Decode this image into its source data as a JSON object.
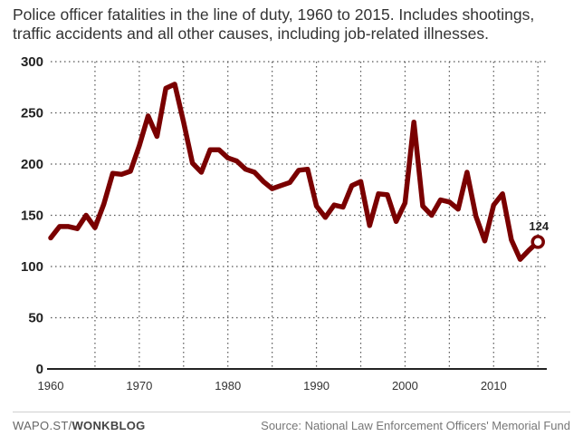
{
  "chart_data": {
    "type": "line",
    "title": "Police officer fatalities in the line of duty, 1960 to 2015. Includes shootings, traffic accidents and all other causes, including job-related illnesses.",
    "xlabel": "",
    "ylabel": "",
    "xlim": [
      1960,
      2016
    ],
    "ylim": [
      0,
      300
    ],
    "yticks": [
      0,
      50,
      100,
      150,
      200,
      250,
      300
    ],
    "xticks": [
      1960,
      1970,
      1980,
      1990,
      2000,
      2010
    ],
    "grid": true,
    "line_color": "#7a0000",
    "series": [
      {
        "name": "Police officer fatalities",
        "x": [
          1960,
          1961,
          1962,
          1963,
          1964,
          1965,
          1966,
          1967,
          1968,
          1969,
          1970,
          1971,
          1972,
          1973,
          1974,
          1975,
          1976,
          1977,
          1978,
          1979,
          1980,
          1981,
          1982,
          1983,
          1984,
          1985,
          1986,
          1987,
          1988,
          1989,
          1990,
          1991,
          1992,
          1993,
          1994,
          1995,
          1996,
          1997,
          1998,
          1999,
          2000,
          2001,
          2002,
          2003,
          2004,
          2005,
          2006,
          2007,
          2008,
          2009,
          2010,
          2011,
          2012,
          2013,
          2014,
          2015
        ],
        "values": [
          128,
          139,
          139,
          137,
          150,
          138,
          161,
          191,
          190,
          193,
          218,
          247,
          227,
          274,
          278,
          241,
          201,
          192,
          214,
          214,
          206,
          203,
          195,
          192,
          183,
          176,
          179,
          182,
          194,
          195,
          159,
          148,
          160,
          158,
          179,
          183,
          140,
          171,
          170,
          144,
          162,
          241,
          159,
          150,
          165,
          163,
          156,
          192,
          149,
          125,
          160,
          171,
          126,
          107,
          116,
          124
        ]
      }
    ],
    "annotation": {
      "label": "124"
    }
  },
  "footer": {
    "credit_prefix": "WAPO.ST/",
    "credit_brand": "WONKBLOG",
    "source": "Source: National Law Enforcement Officers' Memorial Fund"
  }
}
